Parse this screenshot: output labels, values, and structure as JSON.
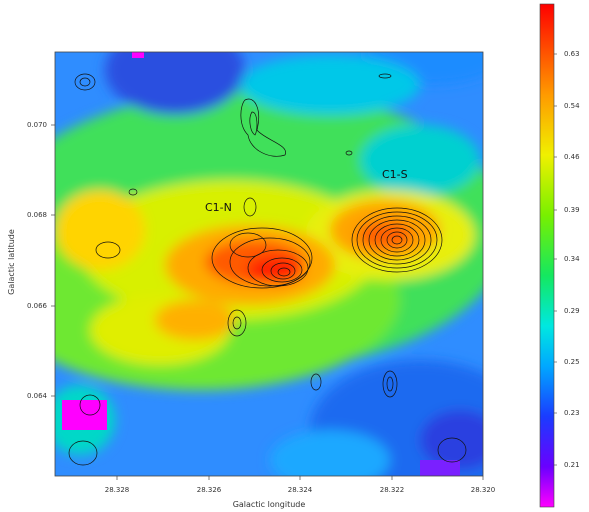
{
  "figure": {
    "xlabel": "Galactic longitude",
    "ylabel": "Galactic latitude",
    "x_ticks": [
      "28.328",
      "28.326",
      "28.324",
      "28.322",
      "28.320"
    ],
    "y_ticks": [
      "0.070",
      "0.068",
      "0.066",
      "0.064"
    ],
    "annotations": [
      "C1-N",
      "C1-S"
    ],
    "colorbar_ticks": [
      "0.63",
      "0.54",
      "0.46",
      "0.39",
      "0.34",
      "0.29",
      "0.25",
      "0.23",
      "0.21"
    ]
  }
}
